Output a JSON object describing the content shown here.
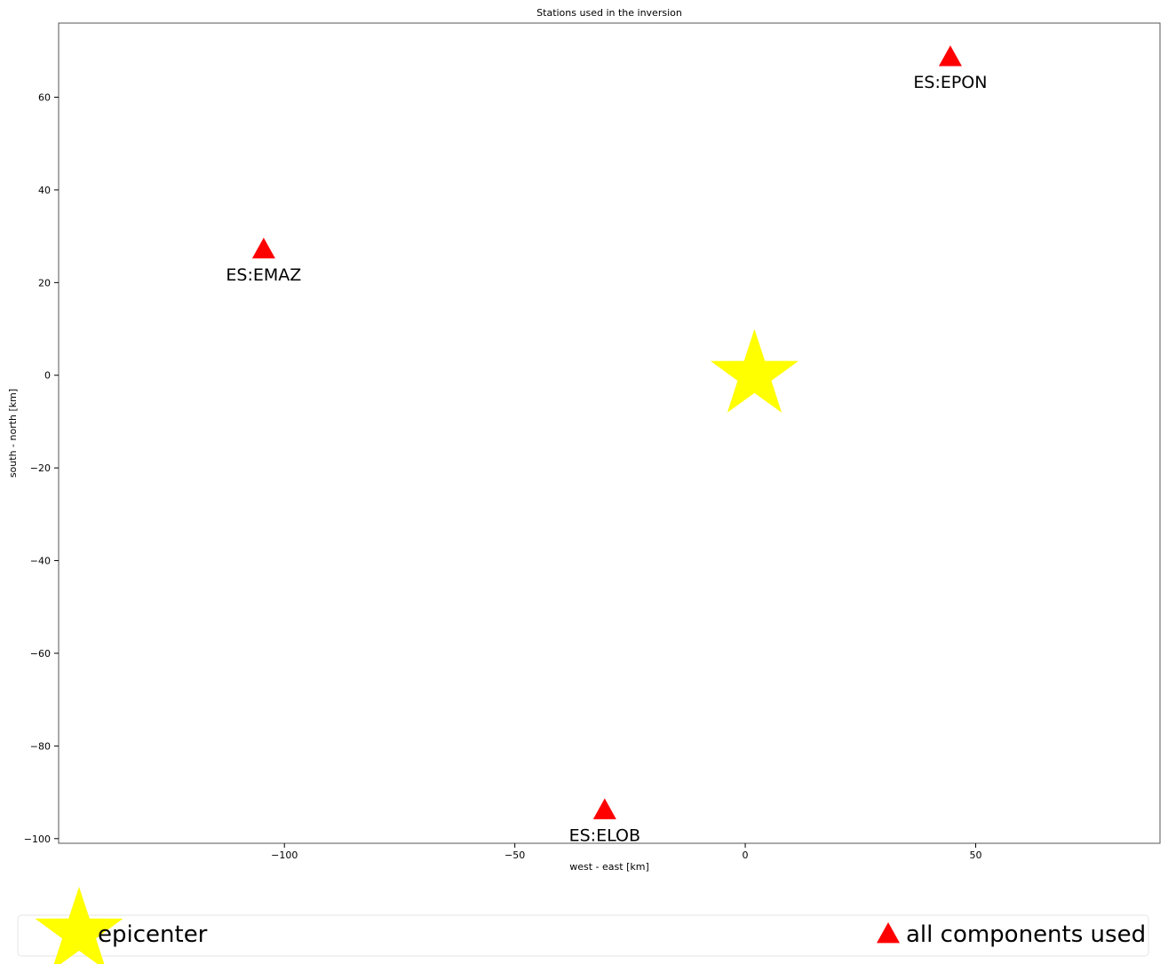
{
  "chart_data": {
    "type": "scatter",
    "title": "Stations used in the inversion",
    "xlabel": "west - east [km]",
    "ylabel": "south - north [km]",
    "xlim": [
      -149,
      90
    ],
    "ylim": [
      -101,
      76
    ],
    "xticks": [
      -100,
      -50,
      0,
      50
    ],
    "xtick_labels": [
      "−100",
      "−50",
      "0",
      "50"
    ],
    "yticks": [
      60,
      40,
      20,
      0,
      -20,
      -40,
      -60,
      -80,
      -100
    ],
    "ytick_labels": [
      "60",
      "40",
      "20",
      "0",
      "−20",
      "−40",
      "−60",
      "−80",
      "−100"
    ],
    "grid": false,
    "legend_placement": "below",
    "series": [
      {
        "name": "epicenter",
        "marker": "star",
        "color": "#ffff00",
        "points": [
          {
            "x": 2,
            "y": 0
          }
        ]
      },
      {
        "name": "all components used",
        "marker": "triangle",
        "color": "#ff0000",
        "points": [
          {
            "x": 44.5,
            "y": 68.5,
            "label": "ES:EPON"
          },
          {
            "x": -104.5,
            "y": 27,
            "label": "ES:EMAZ"
          },
          {
            "x": -30.5,
            "y": -94,
            "label": "ES:ELOB"
          }
        ]
      }
    ]
  }
}
